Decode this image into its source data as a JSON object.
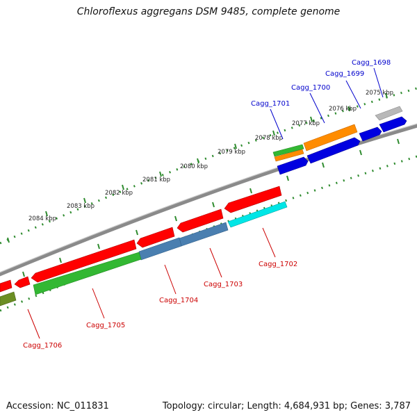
{
  "title": "Chloroflexus aggregans DSM 9485, complete genome",
  "accession_label": "Accession:",
  "accession": "NC_011831",
  "topology_text": "Topology: circular; Length: 4,684,931 bp; Genes: 3,787",
  "colors": {
    "label_plus": "#0000cc",
    "label_minus": "#cc0000",
    "tick": "#2e8b2e",
    "backbone": "#8a8a8a"
  },
  "kbp_ticks": [
    "2075 kbp",
    "2076 kbp",
    "2077 kbp",
    "2078 kbp",
    "2079 kbp",
    "2080 kbp",
    "2081 kbp",
    "2082 kbp",
    "2083 kbp",
    "2084 kbp"
  ],
  "gene_labels_plus": [
    "Cagg_1698",
    "Cagg_1699",
    "Cagg_1700",
    "Cagg_1701"
  ],
  "gene_labels_minus": [
    "Cagg_1702",
    "Cagg_1703",
    "Cagg_1704",
    "Cagg_1705",
    "Cagg_1706"
  ]
}
